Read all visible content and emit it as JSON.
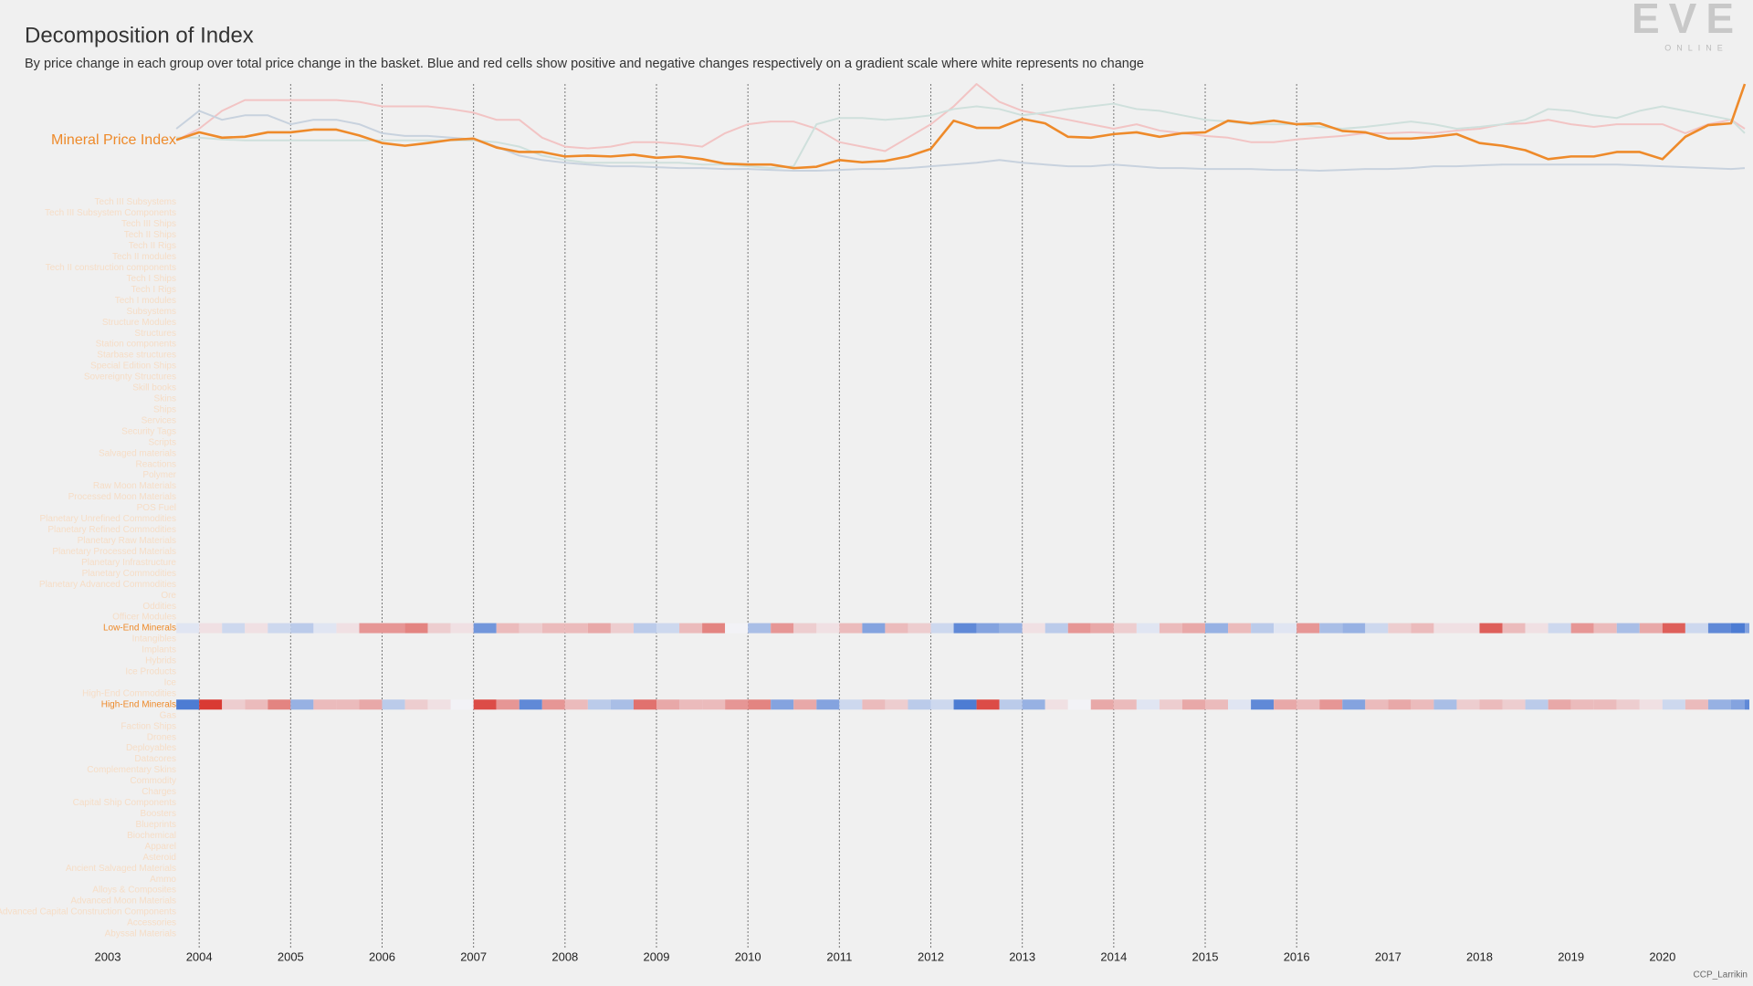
{
  "header": {
    "title": "Decomposition of Index",
    "subtitle": "By price change in each group over total price change in the basket. Blue and red cells show positive and negative changes respectively on a gradient scale where white represents no change",
    "logo": "EVE",
    "logo_sub": "ONLINE",
    "credit": "CCP_Larrikin"
  },
  "chart_data": [
    {
      "type": "line",
      "xlim": [
        2003,
        2020.95
      ],
      "ylim": [
        0,
        100
      ],
      "xticks": [
        2003,
        2004,
        2005,
        2006,
        2007,
        2008,
        2009,
        2010,
        2011,
        2012,
        2013,
        2014,
        2015,
        2016,
        2017,
        2018,
        2019,
        2020
      ],
      "grid_lines": [
        2004,
        2005,
        2006,
        2007,
        2008,
        2009,
        2010,
        2011,
        2012,
        2013,
        2014,
        2015,
        2016
      ],
      "x": [
        2003.75,
        2004,
        2004.25,
        2004.5,
        2004.75,
        2005,
        2005.25,
        2005.5,
        2005.75,
        2006,
        2006.25,
        2006.5,
        2006.75,
        2007,
        2007.25,
        2007.5,
        2007.75,
        2008,
        2008.25,
        2008.5,
        2008.75,
        2009,
        2009.25,
        2009.5,
        2009.75,
        2010,
        2010.25,
        2010.5,
        2010.75,
        2011,
        2011.25,
        2011.5,
        2011.75,
        2012,
        2012.25,
        2012.5,
        2012.75,
        2013,
        2013.25,
        2013.5,
        2013.75,
        2014,
        2014.25,
        2014.5,
        2014.75,
        2015,
        2015.25,
        2015.5,
        2015.75,
        2016,
        2016.25,
        2016.5,
        2016.75,
        2017,
        2017.25,
        2017.5,
        2017.75,
        2018,
        2018.25,
        2018.5,
        2018.75,
        2019,
        2019.25,
        2019.5,
        2019.75,
        2020,
        2020.25,
        2020.5,
        2020.75,
        2020.9
      ],
      "series": [
        {
          "color": "#f2c4c4",
          "values": [
            37,
            50,
            70,
            82,
            82,
            82,
            82,
            82,
            80,
            75,
            75,
            75,
            72,
            68,
            60,
            60,
            40,
            30,
            28,
            30,
            35,
            35,
            33,
            30,
            45,
            55,
            58,
            58,
            50,
            35,
            30,
            25,
            40,
            55,
            75,
            100,
            80,
            70,
            65,
            60,
            55,
            50,
            55,
            48,
            45,
            42,
            40,
            35,
            35,
            38,
            40,
            42,
            45,
            45,
            46,
            45,
            48,
            50,
            55,
            56,
            60,
            55,
            52,
            55,
            55,
            55,
            45,
            55,
            60,
            50
          ]
        },
        {
          "color": "#cfe0dc",
          "values": [
            40,
            40,
            38,
            37,
            37,
            37,
            37,
            37,
            37,
            37,
            37,
            37,
            37,
            37,
            35,
            30,
            20,
            15,
            12,
            12,
            12,
            12,
            12,
            10,
            10,
            8,
            6,
            8,
            55,
            62,
            62,
            60,
            62,
            65,
            72,
            75,
            72,
            65,
            68,
            72,
            75,
            78,
            72,
            70,
            65,
            60,
            58,
            55,
            55,
            55,
            52,
            50,
            52,
            55,
            58,
            55,
            50,
            52,
            55,
            60,
            72,
            70,
            65,
            62,
            70,
            75,
            70,
            65,
            60,
            45
          ]
        },
        {
          "color": "#c8d2de",
          "values": [
            50,
            70,
            60,
            65,
            65,
            55,
            60,
            60,
            55,
            45,
            42,
            42,
            40,
            38,
            30,
            20,
            15,
            12,
            10,
            8,
            8,
            7,
            6,
            6,
            5,
            5,
            4,
            3,
            3,
            4,
            5,
            5,
            6,
            8,
            10,
            12,
            15,
            12,
            10,
            8,
            8,
            10,
            8,
            6,
            6,
            5,
            5,
            5,
            4,
            4,
            3,
            4,
            5,
            5,
            6,
            8,
            8,
            9,
            10,
            10,
            10,
            10,
            10,
            10,
            9,
            8,
            7,
            6,
            5,
            6
          ]
        },
        {
          "name": "Mineral Price Index",
          "color": "#ee8a2a",
          "values": [
            37.5,
            46,
            40,
            41,
            46,
            46,
            49,
            49,
            42.5,
            34,
            31,
            34,
            37.5,
            39,
            29,
            24,
            24,
            19,
            20,
            19,
            21,
            17.5,
            19,
            16,
            11,
            10,
            10,
            6,
            7.5,
            15,
            12.5,
            14,
            19,
            27.5,
            59,
            51,
            51,
            61,
            56,
            41,
            40,
            44,
            46,
            41,
            45,
            46,
            59,
            56,
            59,
            55,
            56,
            47.5,
            46,
            39,
            39,
            41,
            44,
            34,
            31,
            26,
            16,
            19,
            19,
            24,
            24,
            16,
            41,
            54,
            56,
            100
          ]
        }
      ]
    },
    {
      "type": "heatmap",
      "positive_color": "#3b6fcf",
      "negative_color": "#d93a33",
      "neutral_color": "#f2f2f6",
      "label_color": "#f6ddc6",
      "highlight_color": "#ee8a2a",
      "rows": [
        "Tech III Subsystems",
        "Tech III Subsystem Components",
        "Tech III Ships",
        "Tech II Ships",
        "Tech II Rigs",
        "Tech II modules",
        "Tech II construction components",
        "Tech I Ships",
        "Tech I Rigs",
        "Tech I modules",
        "Subsystems",
        "Structure Modules",
        "Structures",
        "Station components",
        "Starbase structures",
        "Special Edition Ships",
        "Sovereignty Structures",
        "Skill books",
        "Skins",
        "Ships",
        "Services",
        "Security Tags",
        "Scripts",
        "Salvaged materials",
        "Reactions",
        "Polymer",
        "Raw Moon Materials",
        "Processed Moon Materials",
        "POS Fuel",
        "Planetary Unrefined Commodities",
        "Planetary Refined Commodities",
        "Planetary Raw Materials",
        "Planetary Processed Materials",
        "Planetary Infrastructure",
        "Planetary Commodities",
        "Planetary Advanced Commodities",
        "Ore",
        "Oddities",
        "Officer Modules",
        "Low-End Minerals",
        "Intangibles",
        "Implants",
        "Hybrids",
        "Ice Products",
        "Ice",
        "High-End Commodities",
        "High-End Minerals",
        "Gas",
        "Faction Ships",
        "Drones",
        "Deployables",
        "Datacores",
        "Complementary Skins",
        "Commodity",
        "Charges",
        "Capital Ship Components",
        "Boosters",
        "Blueprints",
        "Biochemical",
        "Apparel",
        "Asteroid",
        "Ancient Salvaged Materials",
        "Ammo",
        "Alloys & Composites",
        "Advanced Moon Materials",
        "Advanced Capital Construction Components",
        "Accessories",
        "Abyssal Materials"
      ],
      "series": [
        {
          "name": "Low-End Minerals",
          "values": [
            0.1,
            -0.1,
            0.2,
            -0.1,
            0.2,
            0.3,
            0.1,
            -0.1,
            -0.5,
            -0.5,
            -0.6,
            -0.2,
            -0.1,
            0.7,
            -0.3,
            -0.2,
            -0.3,
            -0.3,
            -0.4,
            -0.2,
            0.3,
            0.2,
            -0.3,
            -0.6,
            0.0,
            0.4,
            -0.5,
            -0.2,
            -0.1,
            -0.3,
            0.6,
            -0.3,
            -0.2,
            0.2,
            0.8,
            0.6,
            0.5,
            -0.1,
            0.3,
            -0.5,
            -0.4,
            -0.2,
            0.1,
            -0.3,
            -0.4,
            0.5,
            -0.3,
            0.3,
            0.1,
            -0.5,
            0.4,
            0.5,
            0.2,
            -0.2,
            -0.3,
            -0.1,
            -0.1,
            -0.8,
            -0.3,
            -0.1,
            0.2,
            -0.5,
            -0.3,
            0.4,
            -0.4,
            -0.8,
            0.2,
            0.8,
            0.9,
            0.6
          ]
        },
        {
          "name": "High-End Minerals",
          "values": [
            0.9,
            -1.0,
            -0.2,
            -0.3,
            -0.6,
            0.5,
            -0.3,
            -0.3,
            -0.4,
            0.3,
            -0.2,
            -0.1,
            0.0,
            -0.9,
            -0.5,
            0.8,
            -0.5,
            -0.3,
            0.3,
            0.4,
            -0.7,
            -0.4,
            -0.3,
            -0.3,
            -0.5,
            -0.6,
            0.6,
            -0.4,
            0.6,
            0.2,
            -0.3,
            -0.2,
            0.3,
            0.2,
            0.9,
            -0.9,
            0.3,
            0.5,
            -0.1,
            0.0,
            -0.4,
            -0.3,
            0.1,
            -0.2,
            -0.4,
            -0.3,
            0.1,
            0.8,
            -0.4,
            -0.3,
            -0.5,
            0.6,
            -0.3,
            -0.4,
            -0.3,
            0.4,
            -0.2,
            -0.3,
            -0.2,
            0.3,
            -0.4,
            -0.3,
            -0.3,
            -0.2,
            -0.1,
            0.2,
            -0.3,
            0.5,
            0.6,
            0.8
          ]
        }
      ]
    }
  ]
}
